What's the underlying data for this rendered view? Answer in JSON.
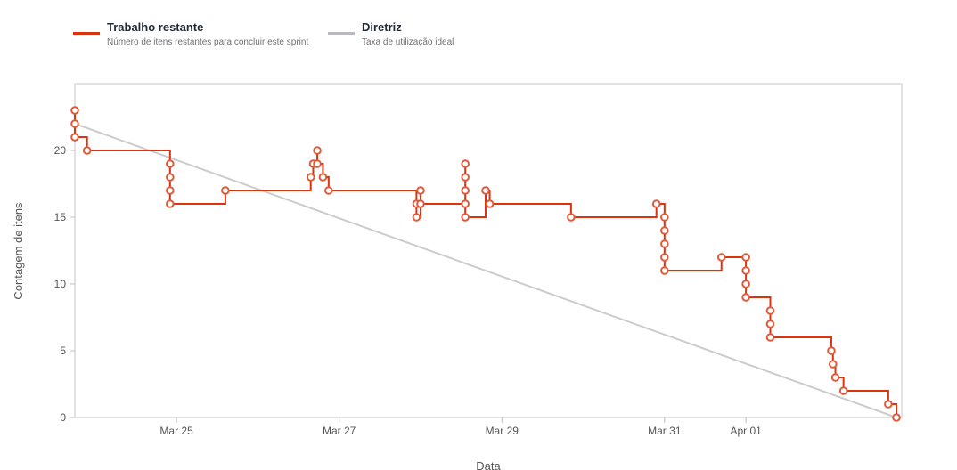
{
  "legend": {
    "remaining": {
      "name": "Trabalho restante",
      "desc": "Número de itens restantes para concluir este sprint",
      "color": "#d9340f"
    },
    "guideline": {
      "name": "Diretriz",
      "desc": "Taxa de utilização ideal",
      "color": "#b9b9c0"
    }
  },
  "chart_data": {
    "type": "line",
    "xlabel": "Data",
    "ylabel": "Contagem de itens",
    "xlim": [
      0,
      10.1
    ],
    "ylim": [
      0,
      23
    ],
    "grid": false,
    "legend_position": "top-left",
    "x_ticks": [
      {
        "x": 1.25,
        "label": "Mar 25"
      },
      {
        "x": 3.25,
        "label": "Mar 27"
      },
      {
        "x": 5.25,
        "label": "Mar 29"
      },
      {
        "x": 7.25,
        "label": "Mar 31"
      },
      {
        "x": 8.25,
        "label": "Apr 01"
      }
    ],
    "y_ticks": [
      0,
      5,
      10,
      15,
      20
    ],
    "series": [
      {
        "name": "Trabalho restante",
        "color": "#d9340f",
        "style": "step",
        "points": [
          [
            0.0,
            23
          ],
          [
            0.0,
            22
          ],
          [
            0.0,
            21
          ],
          [
            0.15,
            20
          ],
          [
            1.17,
            19
          ],
          [
            1.17,
            18
          ],
          [
            1.17,
            17
          ],
          [
            1.17,
            16
          ],
          [
            1.85,
            17
          ],
          [
            2.9,
            18
          ],
          [
            2.93,
            19
          ],
          [
            2.98,
            20
          ],
          [
            2.98,
            19
          ],
          [
            3.05,
            18
          ],
          [
            3.12,
            17
          ],
          [
            4.2,
            16
          ],
          [
            4.2,
            15
          ],
          [
            4.25,
            17
          ],
          [
            4.25,
            16
          ],
          [
            4.8,
            18
          ],
          [
            4.8,
            19
          ],
          [
            4.8,
            17
          ],
          [
            4.8,
            16
          ],
          [
            4.8,
            15
          ],
          [
            5.05,
            17
          ],
          [
            5.1,
            16
          ],
          [
            6.1,
            15
          ],
          [
            7.15,
            16
          ],
          [
            7.25,
            15
          ],
          [
            7.25,
            14
          ],
          [
            7.25,
            13
          ],
          [
            7.25,
            12
          ],
          [
            7.25,
            11
          ],
          [
            7.95,
            12
          ],
          [
            8.25,
            12
          ],
          [
            8.25,
            11
          ],
          [
            8.25,
            10
          ],
          [
            8.25,
            9
          ],
          [
            8.55,
            8
          ],
          [
            8.55,
            7
          ],
          [
            8.55,
            6
          ],
          [
            9.3,
            5
          ],
          [
            9.32,
            4
          ],
          [
            9.35,
            3
          ],
          [
            9.45,
            2
          ],
          [
            10.0,
            1
          ],
          [
            10.1,
            0
          ]
        ]
      },
      {
        "name": "Diretriz",
        "color": "#cccccc",
        "style": "line",
        "points": [
          [
            0.0,
            22
          ],
          [
            10.1,
            0
          ]
        ]
      }
    ]
  }
}
